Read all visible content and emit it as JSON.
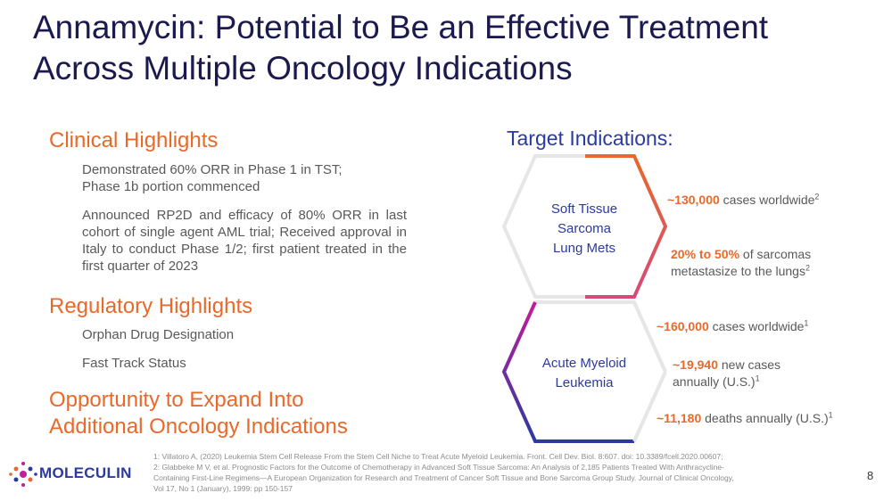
{
  "title": {
    "line1": "Annamycin: Potential to Be an Effective Treatment",
    "line2": "Across Multiple Oncology Indications"
  },
  "clinical": {
    "heading": "Clinical Highlights",
    "bullet1_line1": "Demonstrated 60% ORR in Phase 1 in TST;",
    "bullet1_line2": "Phase 1b portion commenced",
    "bullet2": "Announced RP2D and efficacy of 80% ORR in last cohort of single agent AML trial; Received approval in Italy to conduct Phase 1/2; first patient treated in the first quarter of 2023"
  },
  "regulatory": {
    "heading": "Regulatory Highlights",
    "item1": "Orphan Drug Designation",
    "item2": "Fast Track Status"
  },
  "opportunity": {
    "line1": "Opportunity to Expand Into",
    "line2": "Additional Oncology Indications"
  },
  "target": {
    "heading": "Target Indications:",
    "hex1": {
      "line1": "Soft Tissue",
      "line2": "Sarcoma",
      "line3": "Lung Mets"
    },
    "hex2": {
      "line1": "Acute Myeloid",
      "line2": "Leukemia"
    },
    "stats": {
      "s1_num": "~130,000",
      "s1_text": " cases worldwide",
      "s1_sup": "2",
      "s2_num": "20% to 50%",
      "s2_text": " of sarcomas",
      "s2_line2": "metastasize to the lungs",
      "s2_sup": "2",
      "s3_num": "~160,000",
      "s3_text": " cases worldwide",
      "s3_sup": "1",
      "s4_num": "~19,940",
      "s4_text": " new cases",
      "s4_line2": "annually (U.S.)",
      "s4_sup": "1",
      "s5_num": "~11,180",
      "s5_text": " deaths annually (U.S.)",
      "s5_sup": "1"
    }
  },
  "references": {
    "line1": "1: Villatoro A, (2020) Leukemia Stem Cell Release From the Stem Cell Niche to Treat Acute Myeloid Leukemia. Front. Cell Dev. Biol. 8:607. doi: 10.3389/fcell.2020.00607;",
    "line2": "2: Glabbeke M V, et al. Prognostic Factors for the Outcome of Chemotherapy in Advanced Soft Tissue Sarcoma: An Analysis of 2,185 Patients Treated With Anthracycline-",
    "line3": "Containing First-Line Regimens—A European Organization for Research and Treatment of Cancer Soft Tissue and Bone Sarcoma Group Study. Journal of Clinical Oncology,",
    "line4": "Vol 17, No 1 (January), 1999: pp 150-157"
  },
  "logo": {
    "text": "MOLECULIN"
  },
  "page_number": "8",
  "colors": {
    "navy": "#1a1a4e",
    "orange": "#e8692a",
    "blue": "#2b3a9e",
    "magenta": "#c21d9c",
    "gray": "#595959"
  }
}
